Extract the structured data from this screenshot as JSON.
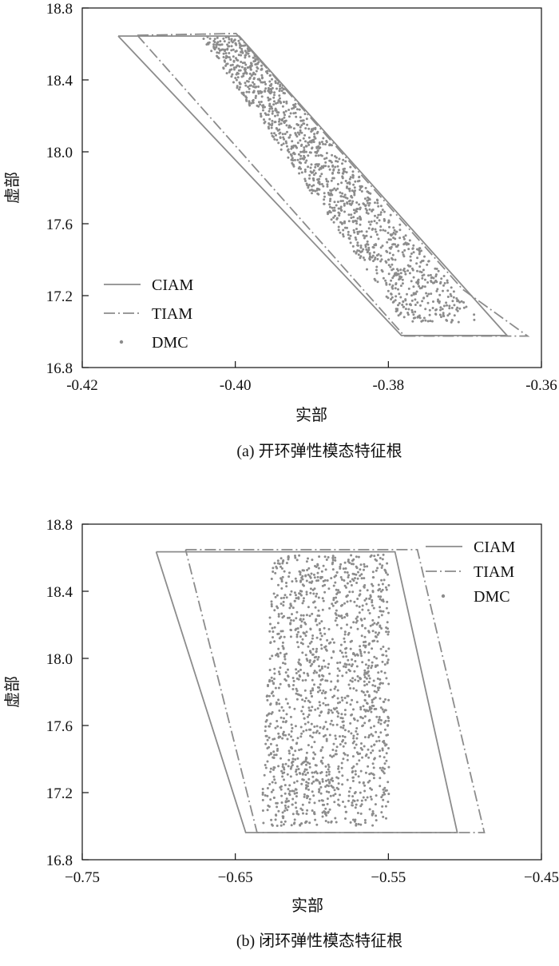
{
  "colors": {
    "axis": "#111111",
    "series": "#8c8c8c",
    "background": "#ffffff"
  },
  "chart_data": [
    {
      "type": "scatter",
      "caption": "(a) 开环弹性模态特征根",
      "xlabel": "实部",
      "ylabel": "虚部",
      "xlim": [
        -0.42,
        -0.36
      ],
      "ylim": [
        16.8,
        18.8
      ],
      "xticks": [
        "-0.42",
        "-0.40",
        "-0.38",
        "-0.36"
      ],
      "yticks": [
        "16.8",
        "17.2",
        "17.6",
        "18.0",
        "18.4",
        "18.8"
      ],
      "xtick_values": [
        -0.42,
        -0.4,
        -0.38,
        -0.36
      ],
      "ytick_values": [
        16.8,
        17.2,
        17.6,
        18.0,
        18.4,
        18.8
      ],
      "legend_position": "bottom-left",
      "grid": false,
      "series": [
        {
          "name": "CIAM",
          "style": "solid",
          "x": [
            -0.4153,
            -0.3995,
            -0.3645,
            -0.3783,
            -0.4153
          ],
          "y": [
            18.644,
            18.644,
            16.978,
            16.978,
            18.644
          ]
        },
        {
          "name": "TIAM",
          "style": "dashdot",
          "x": [
            -0.4128,
            -0.3999,
            -0.3703,
            -0.3618,
            -0.3779,
            -0.4128
          ],
          "y": [
            18.648,
            18.658,
            17.235,
            16.975,
            16.975,
            18.648
          ]
        },
        {
          "name": "DMC",
          "style": "dots",
          "region": {
            "x": [
              -0.4045,
              -0.3995,
              -0.3675,
              -0.378
            ],
            "y": [
              18.64,
              18.64,
              17.05,
              17.05
            ]
          },
          "count": 1300
        }
      ]
    },
    {
      "type": "scatter",
      "caption": "(b) 闭环弹性模态特征根",
      "xlabel": "实部",
      "ylabel": "虚部",
      "xlim": [
        -0.75,
        -0.45
      ],
      "ylim": [
        16.8,
        18.8
      ],
      "xticks": [
        "−0.75",
        "−0.65",
        "−0.55",
        "−0.45"
      ],
      "yticks": [
        "16.8",
        "17.2",
        "17.6",
        "18.0",
        "18.4",
        "18.8"
      ],
      "xtick_values": [
        -0.75,
        -0.65,
        -0.55,
        -0.45
      ],
      "ytick_values": [
        16.8,
        17.2,
        17.6,
        18.0,
        18.4,
        18.8
      ],
      "legend_position": "top-right",
      "grid": false,
      "series": [
        {
          "name": "CIAM",
          "style": "solid",
          "x": [
            -0.7017,
            -0.5457,
            -0.505,
            -0.6432,
            -0.7017
          ],
          "y": [
            18.635,
            18.635,
            16.962,
            16.962,
            18.635
          ]
        },
        {
          "name": "TIAM",
          "style": "dashdot",
          "x": [
            -0.6825,
            -0.5311,
            -0.4873,
            -0.6358,
            -0.6825
          ],
          "y": [
            18.648,
            18.648,
            16.962,
            16.962,
            18.648
          ]
        },
        {
          "name": "DMC",
          "style": "dots",
          "region": {
            "x": [
              -0.626,
              -0.5495,
              -0.5495,
              -0.633
            ],
            "y": [
              18.62,
              18.62,
              17.0,
              17.0
            ]
          },
          "count": 1500
        }
      ]
    }
  ]
}
